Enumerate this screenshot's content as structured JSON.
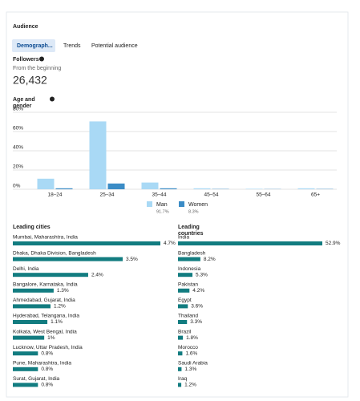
{
  "header": {
    "title": "Audience"
  },
  "tabs": [
    "Demograph...",
    "Trends",
    "Potential audience"
  ],
  "followers": {
    "title": "Followers",
    "subtitle": "From the beginning",
    "total": "26,432"
  },
  "age_gender": {
    "type": "bar",
    "title": [
      "Age and",
      "gender"
    ],
    "categories": [
      "18–24",
      "25–34",
      "35–44",
      "45–54",
      "55–64",
      "65+"
    ],
    "series": [
      {
        "name": "Man",
        "share": "91.7%",
        "color": "#a9d9f5",
        "values": [
          11,
          70.5,
          7,
          1,
          0.5,
          1
        ]
      },
      {
        "name": "Women",
        "share": "8.3%",
        "color": "#3b8cc6",
        "values": [
          1,
          6,
          1,
          0.3,
          0.2,
          0.3
        ]
      }
    ],
    "ylim": [
      0,
      80
    ],
    "yticks": [
      {
        "value": 0,
        "label": "0%"
      },
      {
        "value": 20,
        "label": "20%"
      },
      {
        "value": 40,
        "label": "40%"
      },
      {
        "value": 60,
        "label": "60%"
      },
      {
        "value": 80,
        "label": "80%"
      }
    ],
    "grid": true
  },
  "cities": {
    "title": "Leading cities",
    "color": "#127c80",
    "names": [
      "Mumbai, Maharashtra, India",
      "Dhaka, Dhaka Division, Bangladesh",
      "Delhi, India",
      "Bangalore, Karnataka, India",
      "Ahmedabad, Gujarat, India",
      "Hyderabad, Telangana, India",
      "Kolkata, West Bengal, India",
      "Lucknow, Uttar Pradesh, India",
      "Pune, Maharashtra, India",
      "Surat, Gujarat, India"
    ],
    "values": [
      4.7,
      3.5,
      2.4,
      1.3,
      1.2,
      1.1,
      1,
      0.8,
      0.8,
      0.8
    ],
    "value_labels": [
      "4.7%",
      "3.5%",
      "2.4%",
      "1.3%",
      "1.2%",
      "1.1%",
      "1%",
      "0.8%",
      "0.8%",
      "0.8%"
    ]
  },
  "countries": {
    "title": [
      "Leading",
      "countries"
    ],
    "color": "#127c80",
    "names": [
      "India",
      "Bangladesh",
      "Indonesia",
      "Pakistan",
      "Egypt",
      "Thailand",
      "Brazil",
      "Morocco",
      "Saudi Arabia",
      "Iraq"
    ],
    "values": [
      52.9,
      8.2,
      5.3,
      4.2,
      3.6,
      3.3,
      1.8,
      1.6,
      1.3,
      1.2
    ],
    "value_labels": [
      "52.9%",
      "8.2%",
      "5.3%",
      "4.2%",
      "3.6%",
      "3.3%",
      "1.8%",
      "1.6%",
      "1.3%",
      "1.2%"
    ]
  }
}
